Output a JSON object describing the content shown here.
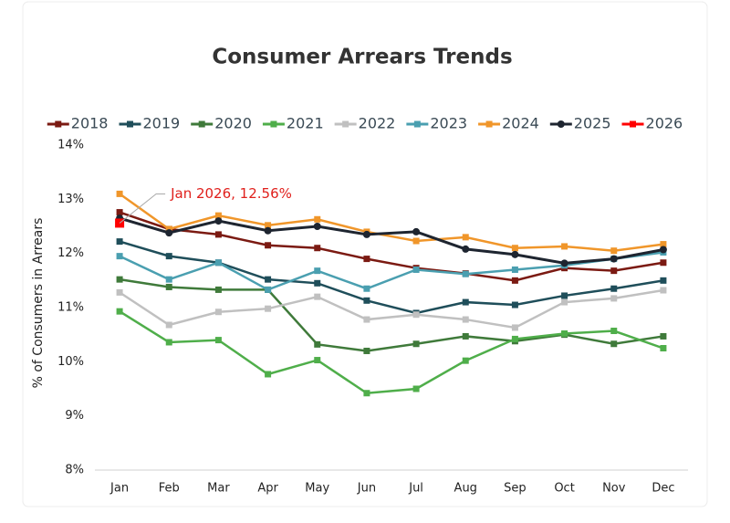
{
  "chart_data": {
    "type": "line",
    "title": "Consumer Arrears Trends",
    "y_label": "% of Consumers in Arrears",
    "annotation": "Jan 2026, 12.56%",
    "categories": [
      "Jan",
      "Feb",
      "Mar",
      "Apr",
      "May",
      "Jun",
      "Jul",
      "Aug",
      "Sep",
      "Oct",
      "Nov",
      "Dec"
    ],
    "ylim": [
      8,
      14
    ],
    "yticks": [
      {
        "value": 8,
        "label": "8%"
      },
      {
        "value": 9,
        "label": "9%"
      },
      {
        "value": 10,
        "label": "10%"
      },
      {
        "value": 11,
        "label": "11%"
      },
      {
        "value": 12,
        "label": "12%"
      },
      {
        "value": 13,
        "label": "13%"
      },
      {
        "value": 14,
        "label": "14%"
      }
    ],
    "legend": "top",
    "series": [
      {
        "name": "2018",
        "color": "#7b1a12",
        "marker": "square",
        "values": [
          12.76,
          12.45,
          12.35,
          12.15,
          12.1,
          11.9,
          11.73,
          11.63,
          11.5,
          11.73,
          11.68,
          11.83
        ]
      },
      {
        "name": "2019",
        "color": "#1f4e5a",
        "marker": "square",
        "values": [
          12.22,
          11.95,
          11.83,
          11.52,
          11.45,
          11.13,
          10.9,
          11.1,
          11.05,
          11.22,
          11.35,
          11.5
        ]
      },
      {
        "name": "2020",
        "color": "#3f7a3a",
        "marker": "square",
        "values": [
          11.52,
          11.38,
          11.33,
          11.33,
          10.32,
          10.2,
          10.33,
          10.47,
          10.38,
          10.5,
          10.33,
          10.47
        ]
      },
      {
        "name": "2021",
        "color": "#4fae4a",
        "marker": "square",
        "values": [
          10.93,
          10.36,
          10.4,
          9.77,
          10.03,
          9.42,
          9.5,
          10.02,
          10.42,
          10.52,
          10.57,
          10.25
        ]
      },
      {
        "name": "2022",
        "color": "#c0c0c0",
        "marker": "square",
        "values": [
          11.28,
          10.68,
          10.92,
          10.98,
          11.2,
          10.78,
          10.87,
          10.78,
          10.63,
          11.1,
          11.17,
          11.32
        ]
      },
      {
        "name": "2023",
        "color": "#4a9fb0",
        "marker": "square",
        "values": [
          11.95,
          11.52,
          11.83,
          11.33,
          11.68,
          11.35,
          11.7,
          11.62,
          11.7,
          11.78,
          11.9,
          12.02
        ]
      },
      {
        "name": "2024",
        "color": "#f0962a",
        "marker": "square",
        "values": [
          13.1,
          12.45,
          12.7,
          12.52,
          12.63,
          12.4,
          12.23,
          12.3,
          12.1,
          12.13,
          12.05,
          12.17
        ]
      },
      {
        "name": "2025",
        "color": "#1e2530",
        "marker": "circle",
        "values": [
          12.65,
          12.38,
          12.6,
          12.42,
          12.5,
          12.35,
          12.4,
          12.08,
          11.98,
          11.82,
          11.9,
          12.07
        ]
      },
      {
        "name": "2026",
        "color": "#ff0000",
        "marker": "square",
        "values": [
          12.56,
          null,
          null,
          null,
          null,
          null,
          null,
          null,
          null,
          null,
          null,
          null
        ]
      }
    ]
  }
}
